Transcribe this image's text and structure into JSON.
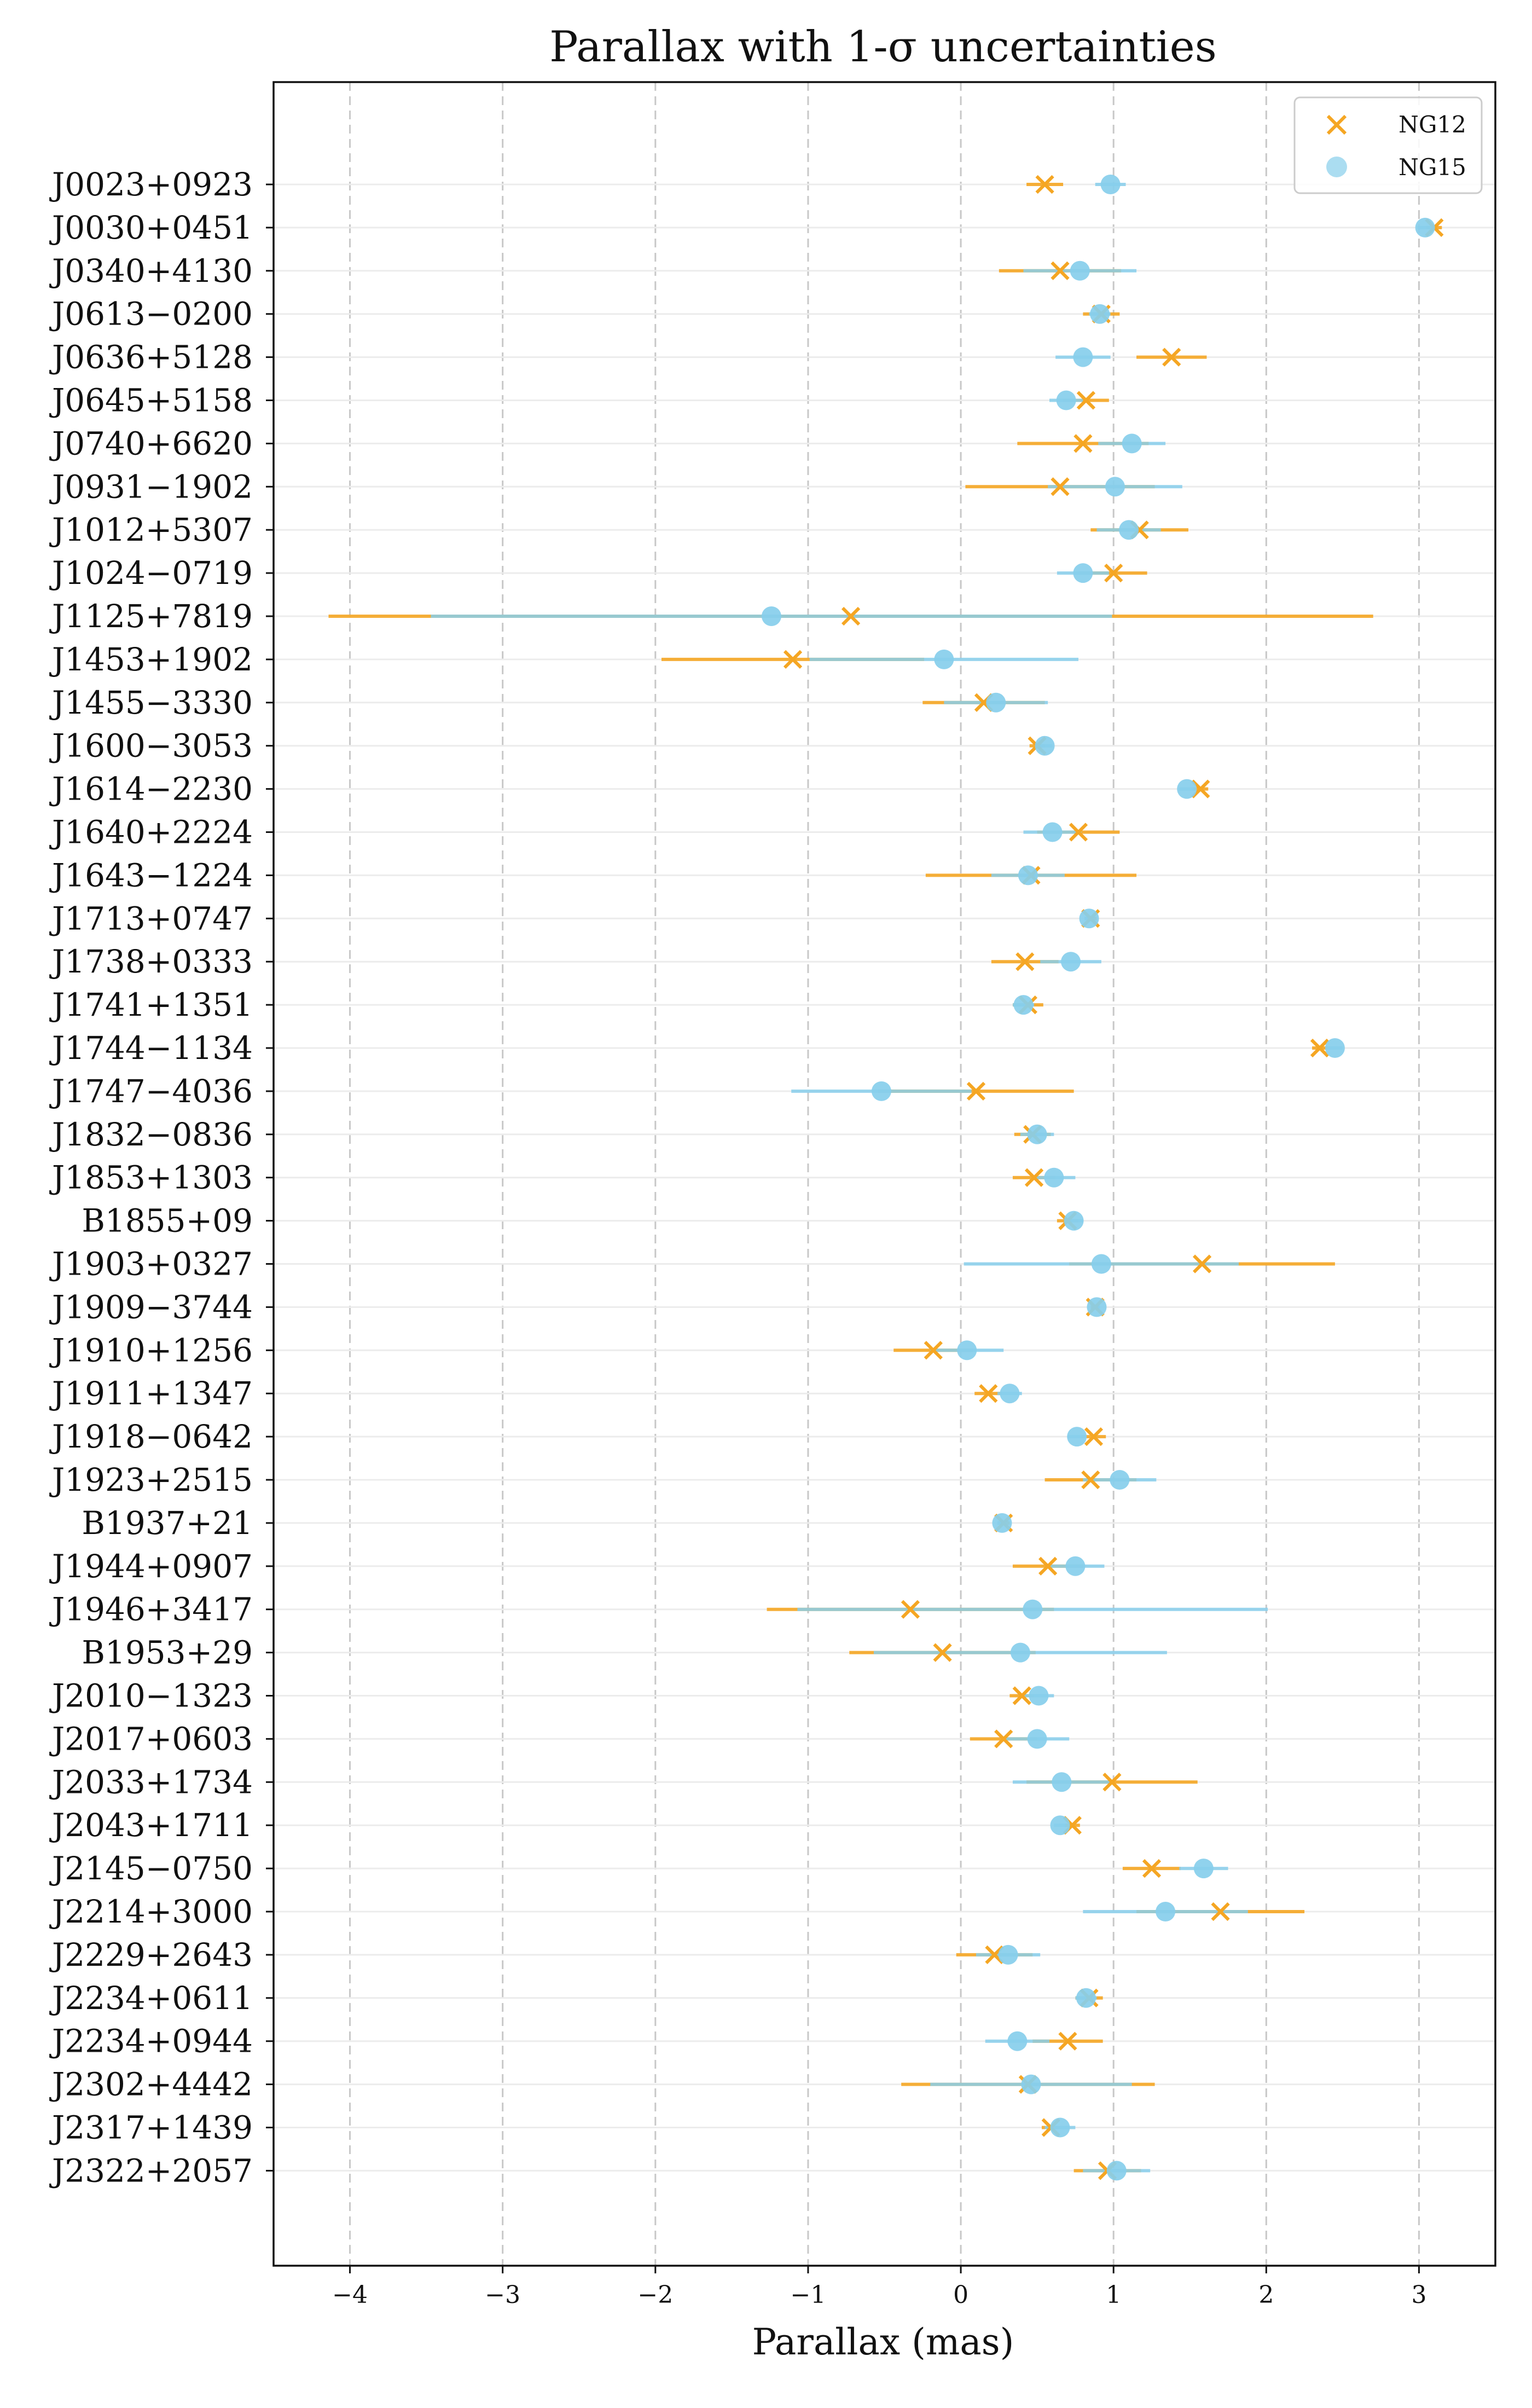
{
  "chart_data": {
    "type": "errorbar",
    "title": "Parallax with 1-σ uncertainties",
    "xlabel": "Parallax (mas)",
    "ylabel": "",
    "xlim": [
      -4.5,
      3.5
    ],
    "x_ticks": [
      -4,
      -3,
      -2,
      -1,
      0,
      1,
      2,
      3
    ],
    "x_tick_labels": [
      "−4",
      "−3",
      "−2",
      "−1",
      "0",
      "1",
      "2",
      "3"
    ],
    "grid": "vertical dashed",
    "legend_position": "top-right",
    "colors": {
      "NG12": "#f5a623",
      "NG15": "#87ceeb"
    },
    "series": [
      {
        "name": "NG12",
        "marker": "x"
      },
      {
        "name": "NG15",
        "marker": "o"
      }
    ],
    "pulsars": [
      {
        "name": "J0023+0923",
        "ng12": [
          0.55,
          0.12
        ],
        "ng15": [
          0.98,
          0.1
        ]
      },
      {
        "name": "J0030+0451",
        "ng12": [
          3.1,
          0.05
        ],
        "ng15": [
          3.04,
          0.05
        ]
      },
      {
        "name": "J0340+4130",
        "ng12": [
          0.65,
          0.4
        ],
        "ng15": [
          0.78,
          0.37
        ]
      },
      {
        "name": "J0613−0200",
        "ng12": [
          0.92,
          0.12
        ],
        "ng15": [
          0.91,
          0.07
        ]
      },
      {
        "name": "J0636+5128",
        "ng12": [
          1.38,
          0.23
        ],
        "ng15": [
          0.8,
          0.18
        ]
      },
      {
        "name": "J0645+5158",
        "ng12": [
          0.82,
          0.15
        ],
        "ng15": [
          0.69,
          0.11
        ]
      },
      {
        "name": "J0740+6620",
        "ng12": [
          0.8,
          0.43
        ],
        "ng15": [
          1.12,
          0.22
        ]
      },
      {
        "name": "J0931−1902",
        "ng12": [
          0.65,
          0.62
        ],
        "ng15": [
          1.01,
          0.44
        ]
      },
      {
        "name": "J1012+5307",
        "ng12": [
          1.17,
          0.32
        ],
        "ng15": [
          1.1,
          0.21
        ]
      },
      {
        "name": "J1024−0719",
        "ng12": [
          1.0,
          0.22
        ],
        "ng15": [
          0.8,
          0.17
        ]
      },
      {
        "name": "J1125+7819",
        "ng12": [
          -0.72,
          3.42
        ],
        "ng15": [
          -1.24,
          2.23
        ]
      },
      {
        "name": "J1453+1902",
        "ng12": [
          -1.1,
          0.86
        ],
        "ng15": [
          -0.11,
          0.88
        ]
      },
      {
        "name": "J1455−3330",
        "ng12": [
          0.15,
          0.4
        ],
        "ng15": [
          0.23,
          0.34
        ]
      },
      {
        "name": "J1600−3053",
        "ng12": [
          0.5,
          0.05
        ],
        "ng15": [
          0.55,
          0.05
        ]
      },
      {
        "name": "J1614−2230",
        "ng12": [
          1.57,
          0.05
        ],
        "ng15": [
          1.48,
          0.05
        ]
      },
      {
        "name": "J1640+2224",
        "ng12": [
          0.77,
          0.27
        ],
        "ng15": [
          0.6,
          0.19
        ]
      },
      {
        "name": "J1643−1224",
        "ng12": [
          0.46,
          0.69
        ],
        "ng15": [
          0.44,
          0.24
        ]
      },
      {
        "name": "J1713+0747",
        "ng12": [
          0.85,
          0.04
        ],
        "ng15": [
          0.84,
          0.03
        ]
      },
      {
        "name": "J1738+0333",
        "ng12": [
          0.42,
          0.22
        ],
        "ng15": [
          0.72,
          0.2
        ]
      },
      {
        "name": "J1741+1351",
        "ng12": [
          0.44,
          0.1
        ],
        "ng15": [
          0.41,
          0.07
        ]
      },
      {
        "name": "J1744−1134",
        "ng12": [
          2.35,
          0.05
        ],
        "ng15": [
          2.45,
          0.05
        ]
      },
      {
        "name": "J1747−4036",
        "ng12": [
          0.1,
          0.64
        ],
        "ng15": [
          -0.52,
          0.59
        ]
      },
      {
        "name": "J1832−0836",
        "ng12": [
          0.47,
          0.12
        ],
        "ng15": [
          0.5,
          0.11
        ]
      },
      {
        "name": "J1853+1303",
        "ng12": [
          0.48,
          0.14
        ],
        "ng15": [
          0.61,
          0.14
        ]
      },
      {
        "name": "B1855+09",
        "ng12": [
          0.7,
          0.07
        ],
        "ng15": [
          0.74,
          0.06
        ]
      },
      {
        "name": "J1903+0327",
        "ng12": [
          1.58,
          0.87
        ],
        "ng15": [
          0.92,
          0.9
        ]
      },
      {
        "name": "J1909−3744",
        "ng12": [
          0.88,
          0.03
        ],
        "ng15": [
          0.89,
          0.02
        ]
      },
      {
        "name": "J1910+1256",
        "ng12": [
          -0.18,
          0.26
        ],
        "ng15": [
          0.04,
          0.24
        ]
      },
      {
        "name": "J1911+1347",
        "ng12": [
          0.18,
          0.09
        ],
        "ng15": [
          0.32,
          0.08
        ]
      },
      {
        "name": "J1918−0642",
        "ng12": [
          0.87,
          0.08
        ],
        "ng15": [
          0.76,
          0.06
        ]
      },
      {
        "name": "J1923+2515",
        "ng12": [
          0.85,
          0.3
        ],
        "ng15": [
          1.04,
          0.24
        ]
      },
      {
        "name": "B1937+21",
        "ng12": [
          0.28,
          0.04
        ],
        "ng15": [
          0.27,
          0.03
        ]
      },
      {
        "name": "J1944+0907",
        "ng12": [
          0.57,
          0.23
        ],
        "ng15": [
          0.75,
          0.19
        ]
      },
      {
        "name": "J1946+3417",
        "ng12": [
          -0.33,
          0.94
        ],
        "ng15": [
          0.47,
          1.54
        ]
      },
      {
        "name": "B1953+29",
        "ng12": [
          -0.12,
          0.61
        ],
        "ng15": [
          0.39,
          0.96
        ]
      },
      {
        "name": "J2010−1323",
        "ng12": [
          0.4,
          0.08
        ],
        "ng15": [
          0.51,
          0.1
        ]
      },
      {
        "name": "J2017+0603",
        "ng12": [
          0.28,
          0.22
        ],
        "ng15": [
          0.5,
          0.21
        ]
      },
      {
        "name": "J2033+1734",
        "ng12": [
          0.99,
          0.56
        ],
        "ng15": [
          0.66,
          0.32
        ]
      },
      {
        "name": "J2043+1711",
        "ng12": [
          0.73,
          0.05
        ],
        "ng15": [
          0.65,
          0.04
        ]
      },
      {
        "name": "J2145−0750",
        "ng12": [
          1.25,
          0.19
        ],
        "ng15": [
          1.59,
          0.16
        ]
      },
      {
        "name": "J2214+3000",
        "ng12": [
          1.7,
          0.55
        ],
        "ng15": [
          1.34,
          0.54
        ]
      },
      {
        "name": "J2229+2643",
        "ng12": [
          0.22,
          0.25
        ],
        "ng15": [
          0.31,
          0.21
        ]
      },
      {
        "name": "J2234+0611",
        "ng12": [
          0.84,
          0.09
        ],
        "ng15": [
          0.82,
          0.07
        ]
      },
      {
        "name": "J2234+0944",
        "ng12": [
          0.7,
          0.23
        ],
        "ng15": [
          0.37,
          0.21
        ]
      },
      {
        "name": "J2302+4442",
        "ng12": [
          0.44,
          0.83
        ],
        "ng15": [
          0.46,
          0.66
        ]
      },
      {
        "name": "J2317+1439",
        "ng12": [
          0.59,
          0.06
        ],
        "ng15": [
          0.65,
          0.1
        ]
      },
      {
        "name": "J2322+2057",
        "ng12": [
          0.96,
          0.22
        ],
        "ng15": [
          1.02,
          0.22
        ]
      }
    ]
  }
}
